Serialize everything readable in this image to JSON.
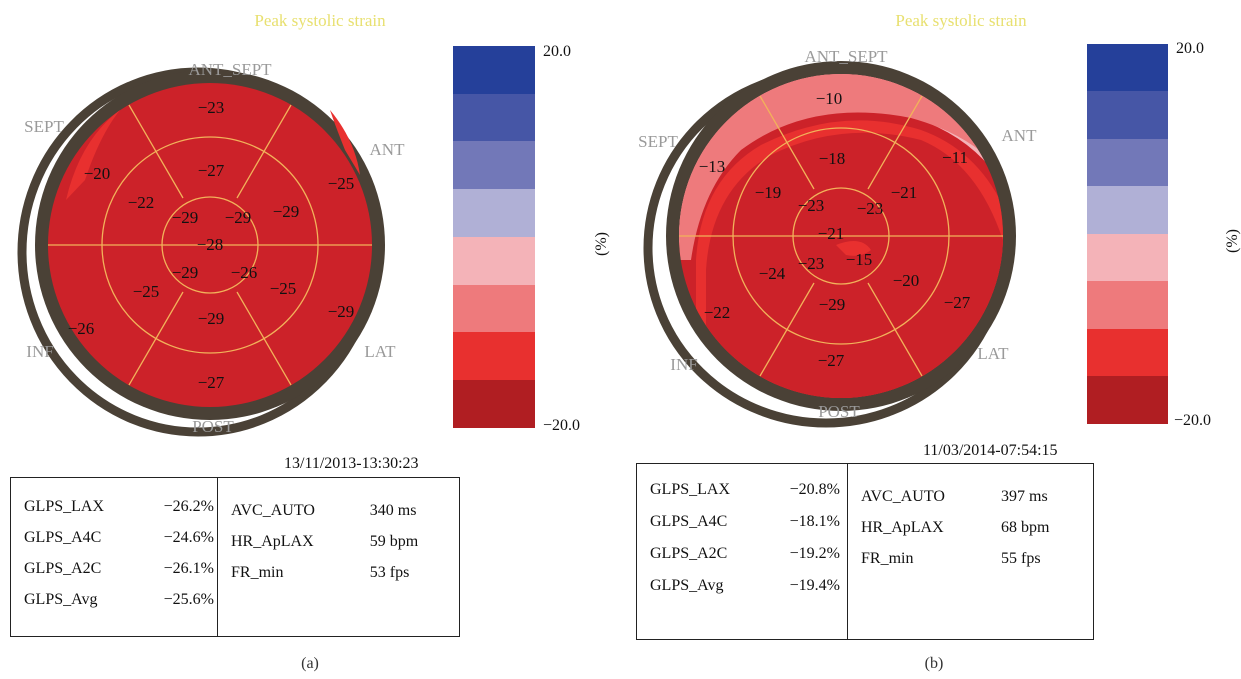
{
  "panels": [
    {
      "id": "a",
      "title": "Peak systolic strain",
      "walls": {
        "ant_sept": "ANT_SEPT",
        "ant": "ANT",
        "lat": "LAT",
        "post": "POST",
        "inf": "INF",
        "sept": "SEPT"
      },
      "segments": {
        "basal": [
          -23,
          -25,
          -29,
          -27,
          -26,
          -20
        ],
        "mid": [
          -27,
          -29,
          -25,
          -29,
          -25,
          -22
        ],
        "apical": [
          -29,
          -26,
          -29,
          -29
        ],
        "apex": -28
      },
      "color_scale": {
        "max": "20.0",
        "min": "−20.0",
        "unit": "(%)"
      },
      "timestamp": "13/11/2013-13:30:23",
      "glps": [
        {
          "name": "GLPS_LAX",
          "value": "−26.2%"
        },
        {
          "name": "GLPS_A4C",
          "value": "−24.6%"
        },
        {
          "name": "GLPS_A2C",
          "value": "−26.1%"
        },
        {
          "name": "GLPS_Avg",
          "value": "−25.6%"
        }
      ],
      "metrics": [
        {
          "name": "AVC_AUTO",
          "value": "340 ms"
        },
        {
          "name": "HR_ApLAX",
          "value": "59 bpm"
        },
        {
          "name": "FR_min",
          "value": "53 fps"
        }
      ],
      "caption": "(a)"
    },
    {
      "id": "b",
      "title": "Peak systolic strain",
      "walls": {
        "ant_sept": "ANT_SEPT",
        "ant": "ANT",
        "lat": "LAT",
        "post": "POST",
        "inf": "INF",
        "sept": "SEPT"
      },
      "segments": {
        "basal": [
          -10,
          -11,
          -27,
          -27,
          -22,
          -13
        ],
        "mid": [
          -18,
          -21,
          -20,
          -29,
          -24,
          -19
        ],
        "apical": [
          -23,
          -15,
          -23,
          -23
        ],
        "apex": -21
      },
      "color_scale": {
        "max": "20.0",
        "min": "−20.0",
        "unit": "(%)"
      },
      "timestamp": "11/03/2014-07:54:15",
      "glps": [
        {
          "name": "GLPS_LAX",
          "value": "−20.8%"
        },
        {
          "name": "GLPS_A4C",
          "value": "−18.1%"
        },
        {
          "name": "GLPS_A2C",
          "value": "−19.2%"
        },
        {
          "name": "GLPS_Avg",
          "value": "−19.4%"
        }
      ],
      "metrics": [
        {
          "name": "AVC_AUTO",
          "value": "397 ms"
        },
        {
          "name": "HR_ApLAX",
          "value": "68 bpm"
        },
        {
          "name": "FR_min",
          "value": "55 fps"
        }
      ],
      "caption": "(b)"
    }
  ],
  "colors": {
    "scale": [
      "#25409a",
      "#4656a6",
      "#7278b8",
      "#b0b0d6",
      "#f4b3b8",
      "#ee7a7c",
      "#e8302f",
      "#b01e22"
    ],
    "myocardium": "#cc2229",
    "ring": "#4a4136",
    "grid": "#f2b25a"
  }
}
